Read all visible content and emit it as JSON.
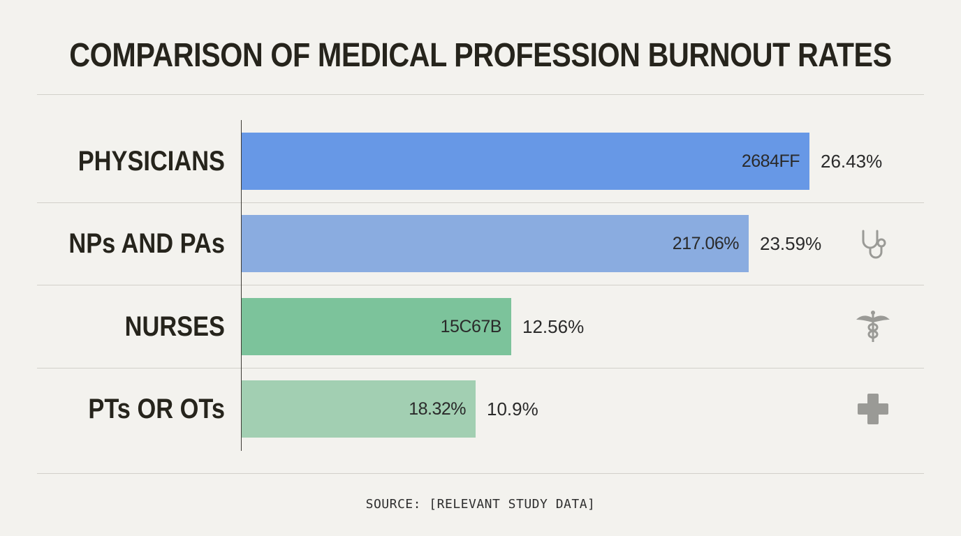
{
  "title": "COMPARISON OF MEDICAL PROFESSION BURNOUT RATES",
  "source": "SOURCE: [RELEVANT STUDY DATA]",
  "chart_data": {
    "type": "bar",
    "orientation": "horizontal",
    "title": "COMPARISON OF MEDICAL PROFESSION BURNOUT RATES",
    "categories": [
      "PHYSICIANS",
      "NPs AND PAs",
      "NURSES",
      "PTs OR OTs"
    ],
    "values": [
      26.43,
      23.59,
      12.56,
      10.9
    ],
    "value_labels": [
      "26.43%",
      "23.59%",
      "12.56%",
      "10.9%"
    ],
    "bar_inner_labels": [
      "2684FF",
      "217.06%",
      "15C67B",
      "18.32%"
    ],
    "bar_colors": [
      "#6798e6",
      "#8aace0",
      "#7cc39b",
      "#a2cfb2"
    ],
    "icons": [
      "",
      "stethoscope-icon",
      "caduceus-icon",
      "medical-cross-icon"
    ],
    "icon_color": "#9a9a96",
    "xlim": [
      0,
      26.43
    ],
    "grid": false,
    "legend": "none"
  }
}
